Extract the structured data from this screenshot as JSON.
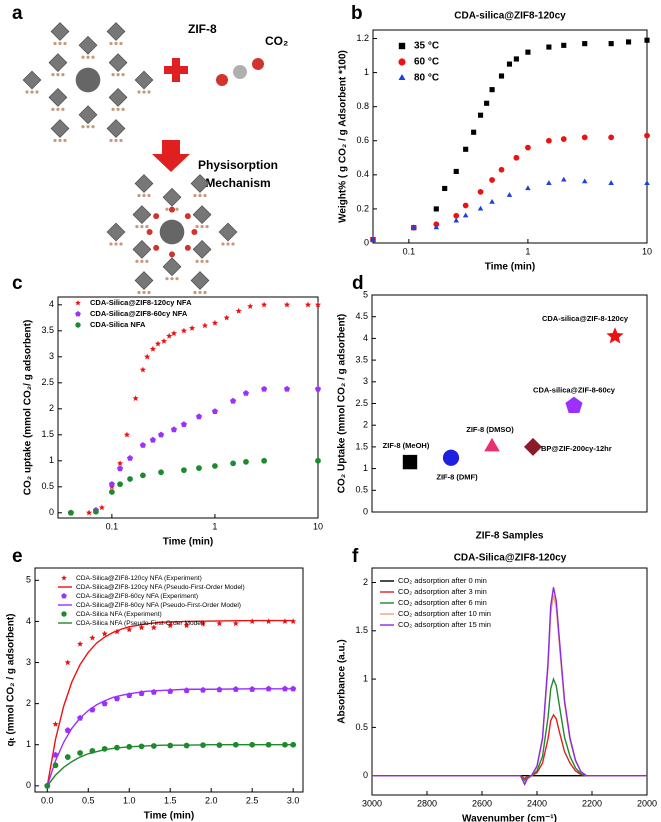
{
  "panel_a": {
    "label": "a",
    "framework_label": "ZIF-8",
    "gas_label": "CO₂",
    "mechanism": [
      "Physisorption",
      "Mechanism"
    ]
  },
  "chart_data": [
    {
      "type": "scatter",
      "panel_label": "b",
      "title": "CDA-silica@ZIF8-120cy",
      "x_label": "Time (min)",
      "y_label": "Weight% ( g CO₂ / g Adsorbent *100)",
      "xlog": true,
      "xlim": [
        0.05,
        10
      ],
      "xticks": [
        0.1,
        1,
        10
      ],
      "ylim": [
        0,
        1.25
      ],
      "yticks": [
        0,
        0.2,
        0.4,
        0.6,
        0.8,
        1,
        1.2
      ],
      "series": [
        {
          "name": "35 °C",
          "color": "#000000",
          "marker": "square",
          "x": [
            0.05,
            0.11,
            0.17,
            0.2,
            0.25,
            0.3,
            0.35,
            0.4,
            0.45,
            0.5,
            0.6,
            0.7,
            0.8,
            1,
            1.5,
            2,
            3,
            5,
            7,
            10
          ],
          "values": [
            0.02,
            0.09,
            0.2,
            0.32,
            0.42,
            0.55,
            0.65,
            0.75,
            0.82,
            0.9,
            0.98,
            1.05,
            1.08,
            1.12,
            1.15,
            1.16,
            1.17,
            1.17,
            1.18,
            1.19
          ]
        },
        {
          "name": "60 °C",
          "color": "#ee1111",
          "marker": "circle",
          "x": [
            0.05,
            0.11,
            0.17,
            0.25,
            0.3,
            0.4,
            0.5,
            0.6,
            0.8,
            1,
            1.5,
            2,
            3,
            5,
            10
          ],
          "values": [
            0.02,
            0.09,
            0.11,
            0.16,
            0.22,
            0.3,
            0.37,
            0.43,
            0.5,
            0.56,
            0.6,
            0.61,
            0.62,
            0.62,
            0.63
          ]
        },
        {
          "name": "80 °C",
          "color": "#1f3fe0",
          "marker": "triangle",
          "x": [
            0.05,
            0.11,
            0.17,
            0.25,
            0.3,
            0.4,
            0.5,
            0.7,
            1,
            1.5,
            2,
            3,
            5,
            10
          ],
          "values": [
            0.02,
            0.09,
            0.09,
            0.13,
            0.16,
            0.2,
            0.24,
            0.28,
            0.32,
            0.35,
            0.37,
            0.36,
            0.35,
            0.35
          ]
        }
      ]
    },
    {
      "type": "scatter",
      "panel_label": "c",
      "x_label": "Time (min)",
      "y_label": "CO₂ uptake (mmol CO₂/ g adsorbent)",
      "xlog": true,
      "xlim": [
        0.03,
        10
      ],
      "xticks": [
        0.1,
        1,
        10
      ],
      "ylim": [
        -0.1,
        4.15
      ],
      "yticks": [
        0,
        0.5,
        1,
        1.5,
        2,
        2.5,
        3,
        3.5,
        4
      ],
      "series": [
        {
          "name": "CDA-Silica@ZIF8-120cy NFA",
          "color": "#ee1111",
          "marker": "star",
          "x": [
            0.04,
            0.06,
            0.08,
            0.1,
            0.12,
            0.14,
            0.17,
            0.2,
            0.22,
            0.25,
            0.28,
            0.32,
            0.36,
            0.4,
            0.5,
            0.6,
            0.8,
            1,
            1.3,
            1.7,
            2.2,
            3,
            5,
            8,
            10
          ],
          "values": [
            0,
            0,
            0.1,
            0.5,
            0.95,
            1.5,
            2.2,
            2.75,
            3.0,
            3.15,
            3.25,
            3.3,
            3.4,
            3.45,
            3.5,
            3.55,
            3.6,
            3.65,
            3.75,
            3.88,
            3.97,
            4.0,
            4.0,
            4.0,
            4.0
          ]
        },
        {
          "name": "CDA-Silica@ZIF8-60cy NFA",
          "color": "#9b30ff",
          "marker": "pentagon",
          "x": [
            0.04,
            0.07,
            0.1,
            0.12,
            0.15,
            0.2,
            0.25,
            0.3,
            0.4,
            0.5,
            0.7,
            1,
            1.5,
            2,
            3,
            5,
            10
          ],
          "values": [
            0,
            0.05,
            0.55,
            0.85,
            1.05,
            1.3,
            1.4,
            1.5,
            1.6,
            1.7,
            1.85,
            1.95,
            2.15,
            2.3,
            2.38,
            2.38,
            2.38
          ]
        },
        {
          "name": "CDA-Silica NFA",
          "color": "#1e8a2e",
          "marker": "circle",
          "x": [
            0.04,
            0.07,
            0.1,
            0.12,
            0.15,
            0.2,
            0.3,
            0.5,
            0.7,
            1,
            1.5,
            2,
            3,
            10
          ],
          "values": [
            0,
            0.02,
            0.4,
            0.55,
            0.65,
            0.72,
            0.78,
            0.82,
            0.86,
            0.9,
            0.95,
            0.98,
            1.0,
            1.0
          ]
        }
      ]
    },
    {
      "type": "point",
      "panel_label": "d",
      "x_label": "ZIF-8 Samples",
      "y_label": "CO₂ Uptake (mmol CO₂ / g adsorbent)",
      "ylim": [
        0,
        5
      ],
      "yticks": [
        0,
        0.5,
        1,
        1.5,
        2,
        2.5,
        3,
        3.5,
        4,
        4.5,
        5
      ],
      "categories": [
        "ZIF-8 (MeOH)",
        "ZIF-8 (DMF)",
        "ZIF-8 (DMSO)",
        "BP@ZIF-200cy-12hr",
        "CDA-silica@ZIF-8-60cy",
        "CDA-silica@ZIF-8-120cy"
      ],
      "values": [
        1.15,
        1.25,
        1.5,
        1.5,
        2.45,
        4.05
      ],
      "colors": [
        "#000000",
        "#1f1fe0",
        "#e8316e",
        "#8b1a2b",
        "#9b30ff",
        "#ee1111"
      ],
      "markers": [
        "square",
        "circle",
        "triangle",
        "diamond",
        "pentagon",
        "star"
      ]
    },
    {
      "type": "scatter",
      "panel_label": "e",
      "x_label": "Time (min)",
      "y_label": "qₜ (mmol CO₂ / g adsorbent)",
      "xlim": [
        -0.15,
        3.12
      ],
      "xticks": [
        {
          "value": 0,
          "label": "0.0"
        },
        0.5,
        {
          "value": 1,
          "label": "1.0"
        },
        1.5,
        {
          "value": 2,
          "label": "2.0"
        },
        2.5,
        {
          "value": 3,
          "label": "3.0"
        }
      ],
      "ylim": [
        -0.15,
        5.3
      ],
      "yticks": [
        0,
        1,
        2,
        3,
        4,
        5
      ],
      "series": [
        {
          "name": "CDA-Silica@ZIF8-120cy NFA (Experiment)",
          "color": "#ee1111",
          "marker": "star",
          "x": [
            0,
            0.1,
            0.25,
            0.4,
            0.55,
            0.7,
            0.85,
            1,
            1.15,
            1.3,
            1.5,
            1.7,
            1.9,
            2.1,
            2.3,
            2.5,
            2.7,
            2.9,
            3
          ],
          "values": [
            0,
            1.5,
            3.0,
            3.45,
            3.6,
            3.7,
            3.75,
            3.8,
            3.85,
            3.85,
            3.9,
            3.9,
            3.95,
            3.95,
            3.95,
            4.0,
            4.0,
            4.0,
            4.0
          ]
        },
        {
          "name": "CDA-Silica@ZIF8-120cy NFA (Pseudo-First-Order Model)",
          "color": "#ee1111",
          "x": [
            0,
            0.1,
            0.2,
            0.3,
            0.4,
            0.5,
            0.6,
            0.7,
            0.8,
            0.9,
            1,
            1.2,
            1.4,
            1.7,
            2,
            2.5,
            3
          ],
          "values": [
            0,
            1.13,
            1.94,
            2.53,
            2.95,
            3.25,
            3.47,
            3.62,
            3.73,
            3.81,
            3.87,
            3.94,
            3.98,
            4.0,
            4.01,
            4.02,
            4.02
          ]
        },
        {
          "name": "CDA-Silica@ZIF8-60cy NFA (Experiment)",
          "color": "#9b30ff",
          "marker": "pentagon",
          "x": [
            0,
            0.1,
            0.25,
            0.4,
            0.55,
            0.7,
            0.85,
            1,
            1.15,
            1.3,
            1.5,
            1.7,
            1.9,
            2.1,
            2.3,
            2.5,
            2.7,
            2.9,
            3
          ],
          "values": [
            0,
            0.75,
            1.35,
            1.65,
            1.85,
            2.0,
            2.12,
            2.2,
            2.25,
            2.28,
            2.3,
            2.32,
            2.33,
            2.34,
            2.35,
            2.35,
            2.36,
            2.36,
            2.36
          ]
        },
        {
          "name": "CDA-Silica@ZIF8-60cy NFA (Pseudo-First-Order Model)",
          "color": "#9b30ff",
          "x": [
            0,
            0.1,
            0.2,
            0.3,
            0.4,
            0.5,
            0.6,
            0.7,
            0.8,
            0.9,
            1,
            1.2,
            1.4,
            1.7,
            2,
            2.5,
            3
          ],
          "values": [
            0,
            0.61,
            1.06,
            1.4,
            1.65,
            1.83,
            1.97,
            2.07,
            2.15,
            2.2,
            2.24,
            2.3,
            2.32,
            2.35,
            2.35,
            2.36,
            2.36
          ]
        },
        {
          "name": "CDA-Silica NFA (Experiment)",
          "color": "#1e8a2e",
          "marker": "circle",
          "x": [
            0,
            0.1,
            0.25,
            0.4,
            0.55,
            0.7,
            0.85,
            1,
            1.15,
            1.3,
            1.5,
            1.7,
            1.9,
            2.1,
            2.3,
            2.5,
            2.7,
            2.9,
            3
          ],
          "values": [
            0,
            0.5,
            0.7,
            0.8,
            0.85,
            0.9,
            0.93,
            0.95,
            0.96,
            0.97,
            0.98,
            0.98,
            0.99,
            0.99,
            1.0,
            1.0,
            1.0,
            1.0,
            1.0
          ]
        },
        {
          "name": "CDA-Silica NFA (Pseudo-First-Order Model)",
          "color": "#1e8a2e",
          "x": [
            0,
            0.1,
            0.2,
            0.3,
            0.4,
            0.5,
            0.6,
            0.7,
            0.8,
            0.9,
            1,
            1.2,
            1.4,
            1.7,
            2,
            2.5,
            3
          ],
          "values": [
            0,
            0.26,
            0.45,
            0.59,
            0.7,
            0.78,
            0.83,
            0.88,
            0.91,
            0.93,
            0.95,
            0.97,
            0.99,
            0.99,
            1.0,
            1.0,
            1.0
          ]
        }
      ]
    },
    {
      "type": "line",
      "panel_label": "f",
      "title": "CDA-Silica@ZIF8-120cy",
      "x_label": "Wavenumber (cm⁻¹)",
      "y_label": "Absorbance (a.u.)",
      "xlim": [
        3000,
        2000
      ],
      "xticks": [
        3000,
        2800,
        2600,
        2400,
        2200,
        2000
      ],
      "ylim": [
        -0.2,
        2.15
      ],
      "yticks": [
        0,
        0.5,
        1,
        1.5,
        2
      ],
      "x": [
        3000,
        2500,
        2460,
        2445,
        2435,
        2420,
        2400,
        2380,
        2360,
        2350,
        2340,
        2330,
        2320,
        2300,
        2280,
        2260,
        2240,
        2220,
        2000
      ],
      "series": [
        {
          "name": "CO₂ adsorption after 0 min",
          "color": "#000000",
          "values": [
            0,
            0,
            0,
            0,
            0,
            0,
            0,
            0,
            0,
            0,
            0,
            0,
            0,
            0,
            0,
            0,
            0,
            0,
            0
          ]
        },
        {
          "name": "CO₂ adsorption after 3 min",
          "color": "#e02020",
          "values": [
            0,
            0,
            0,
            -0.03,
            -0.01,
            0,
            0.03,
            0.13,
            0.38,
            0.57,
            0.63,
            0.59,
            0.47,
            0.25,
            0.13,
            0.05,
            0.01,
            0,
            0
          ]
        },
        {
          "name": "CO₂ adsorption after 6 min",
          "color": "#1e8a2e",
          "values": [
            0,
            0,
            0,
            -0.05,
            -0.02,
            0,
            0.05,
            0.2,
            0.6,
            0.9,
            1.0,
            0.93,
            0.75,
            0.4,
            0.2,
            0.08,
            0.02,
            0,
            0
          ]
        },
        {
          "name": "CO₂ adsorption after 10 min",
          "color": "#f4a07a",
          "values": [
            0,
            0,
            0,
            -0.08,
            -0.03,
            0,
            0.09,
            0.37,
            1.12,
            1.68,
            1.87,
            1.74,
            1.4,
            0.75,
            0.37,
            0.15,
            0.04,
            0,
            0
          ]
        },
        {
          "name": "CO₂ adsorption after 15 min",
          "color": "#8a2be2",
          "values": [
            0,
            0,
            0,
            -0.09,
            -0.03,
            0,
            0.1,
            0.39,
            1.17,
            1.76,
            1.95,
            1.81,
            1.46,
            0.78,
            0.39,
            0.16,
            0.04,
            0,
            0
          ]
        }
      ]
    }
  ]
}
